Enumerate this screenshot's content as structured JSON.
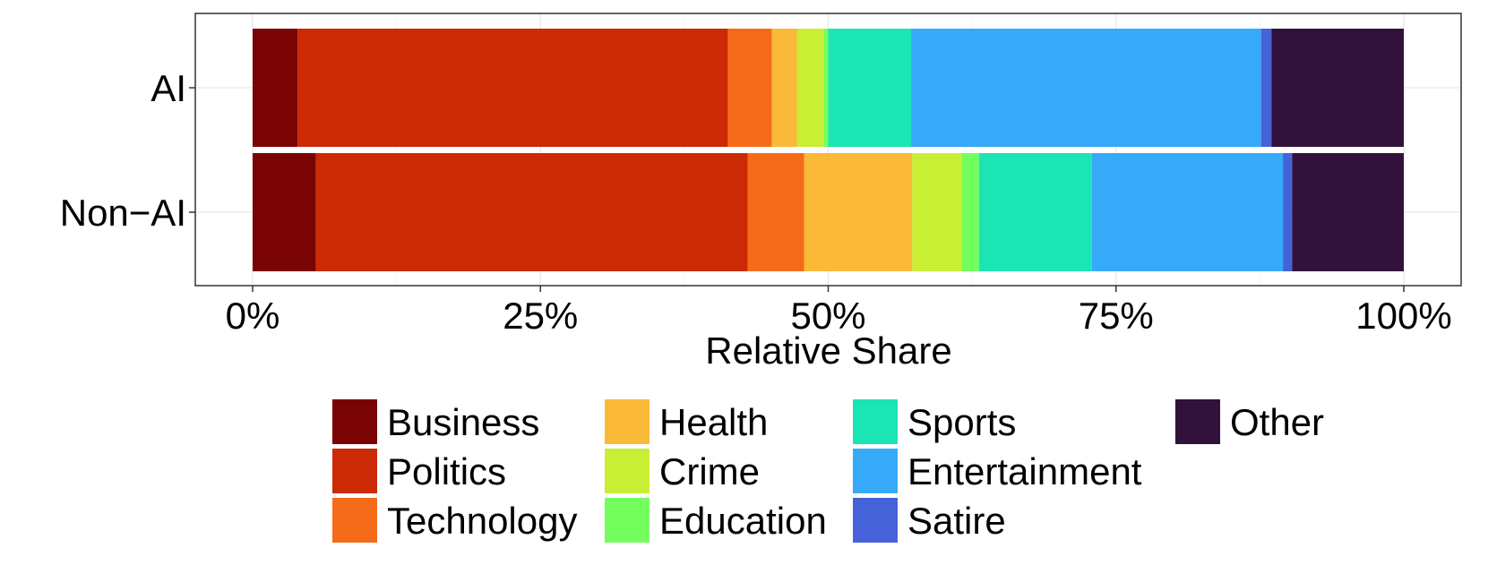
{
  "chart_data": {
    "type": "bar",
    "orientation": "horizontal",
    "stacked": "percent",
    "title": "",
    "xlabel": "Relative Share",
    "ylabel": "",
    "xlim": [
      0,
      100
    ],
    "x_ticks": [
      0,
      25,
      50,
      75,
      100
    ],
    "x_tick_labels": [
      "0%",
      "25%",
      "50%",
      "75%",
      "100%"
    ],
    "categories": [
      "AI",
      "Non−AI"
    ],
    "grid": true,
    "legend_position": "bottom",
    "series": [
      {
        "name": "Business",
        "color": "#7a0403",
        "values": [
          3.9,
          5.5
        ]
      },
      {
        "name": "Politics",
        "color": "#cb2a04",
        "values": [
          37.4,
          37.5
        ]
      },
      {
        "name": "Technology",
        "color": "#f66b19",
        "values": [
          3.8,
          4.9
        ]
      },
      {
        "name": "Health",
        "color": "#fab936",
        "values": [
          2.2,
          9.4
        ]
      },
      {
        "name": "Crime",
        "color": "#c8ef34",
        "values": [
          2.3,
          4.3
        ]
      },
      {
        "name": "Education",
        "color": "#74fe5d",
        "values": [
          0.4,
          1.5
        ]
      },
      {
        "name": "Sports",
        "color": "#1be5b5",
        "values": [
          7.2,
          9.8
        ]
      },
      {
        "name": "Entertainment",
        "color": "#36aaf9",
        "values": [
          30.4,
          16.6
        ]
      },
      {
        "name": "Satire",
        "color": "#4662d8",
        "values": [
          0.9,
          0.8
        ]
      },
      {
        "name": "Other",
        "color": "#30123b",
        "values": [
          11.5,
          9.7
        ]
      }
    ]
  }
}
